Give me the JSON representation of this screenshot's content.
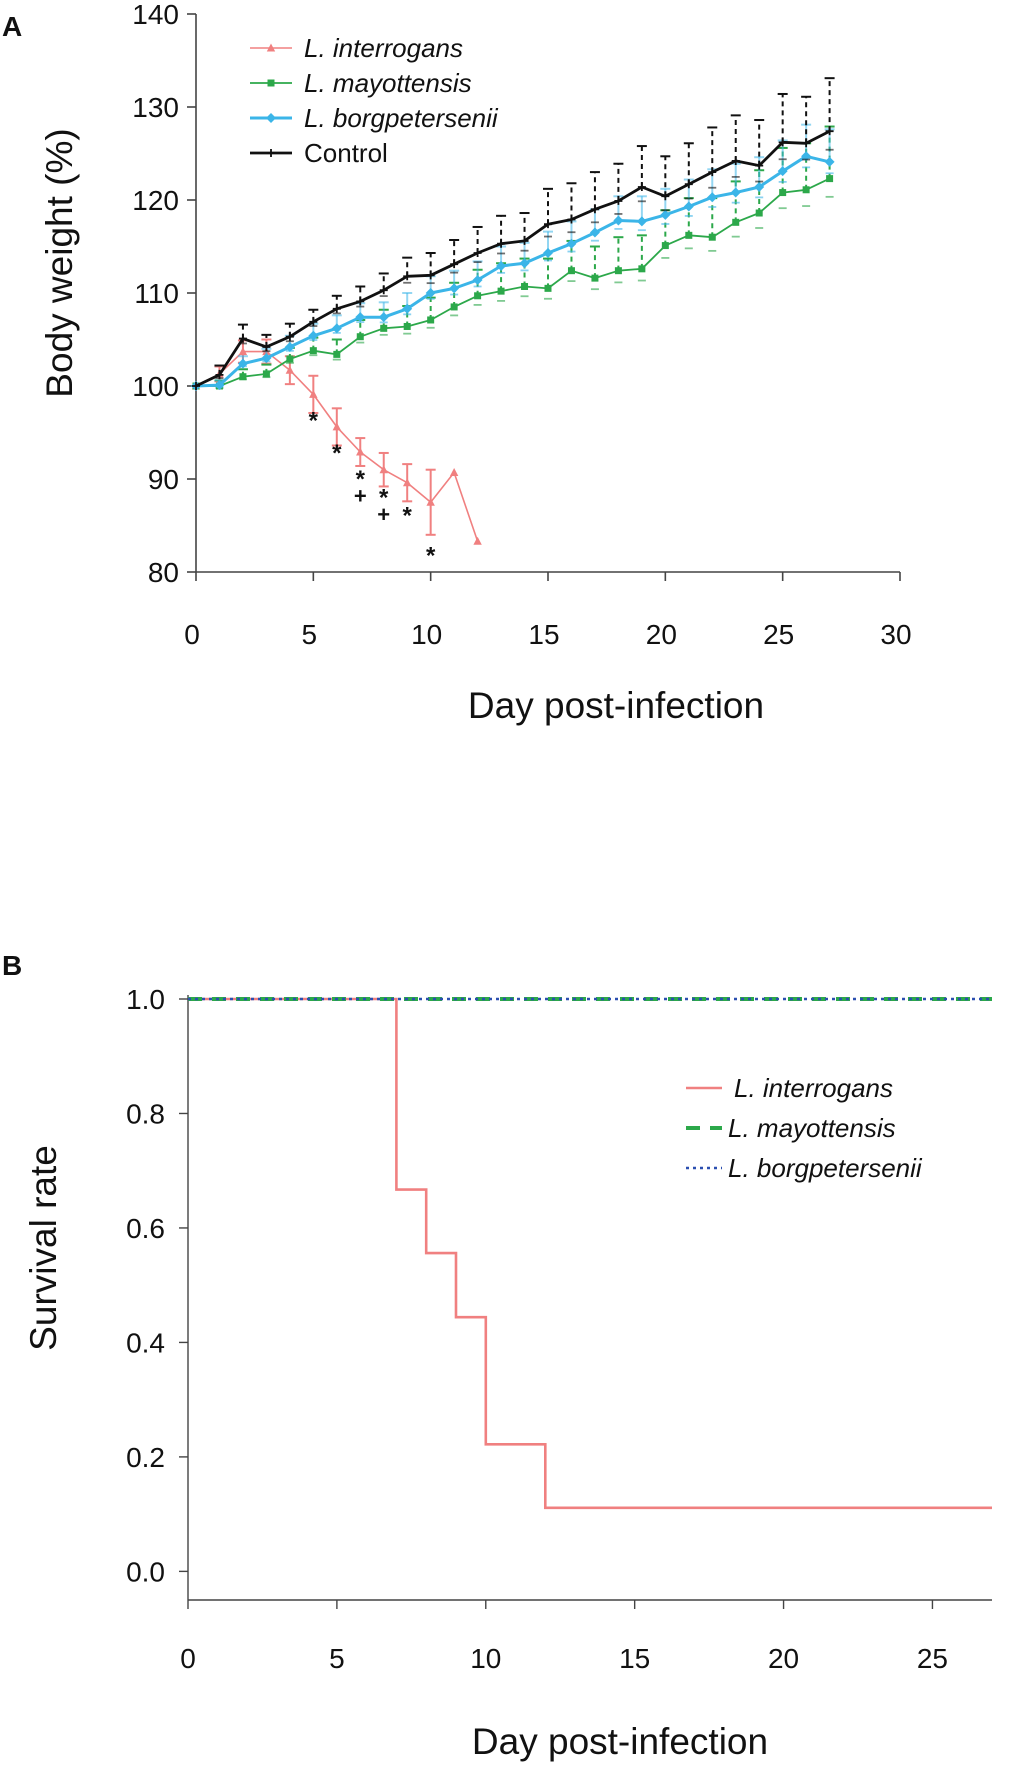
{
  "chart_data": [
    {
      "panel": "A",
      "type": "line",
      "xlabel": "Day post-infection",
      "ylabel": "Body weight (%)",
      "xlim": [
        0,
        30
      ],
      "ylim": [
        80,
        140
      ],
      "xticks": [
        "0",
        "5",
        "10",
        "15",
        "20",
        "25",
        "30"
      ],
      "yticks": [
        "80",
        "90",
        "100",
        "110",
        "120",
        "130",
        "140"
      ],
      "legend_position": "top-left",
      "series": [
        {
          "name": "L. interrogans",
          "color": "#f08080",
          "marker": "triangle",
          "x": [
            0,
            1,
            2,
            3,
            4,
            5,
            6,
            7,
            8,
            9,
            10,
            11,
            12
          ],
          "y": [
            100,
            101.3,
            103.7,
            103.7,
            101.7,
            99.1,
            95.6,
            92.9,
            91.0,
            89.6,
            87.5,
            90.7,
            83.3
          ],
          "err": [
            0,
            0.8,
            1.2,
            1.3,
            1.5,
            2.0,
            2.0,
            1.5,
            1.8,
            2.0,
            3.5,
            0,
            0
          ]
        },
        {
          "name": "L. mayottensis",
          "color": "#2ca84a",
          "marker": "square",
          "x": [
            0,
            1,
            2,
            3,
            4,
            5,
            6,
            7,
            8,
            9,
            10,
            11,
            12,
            13,
            14,
            15,
            16,
            17,
            18,
            19,
            20,
            21,
            22,
            23,
            24,
            25,
            26,
            27
          ],
          "y": [
            100,
            100.0,
            101.0,
            101.3,
            102.9,
            103.8,
            103.4,
            105.3,
            106.2,
            106.4,
            107.1,
            108.5,
            109.7,
            110.2,
            110.7,
            110.5,
            112.4,
            111.6,
            112.4,
            112.6,
            115.1,
            116.2,
            116.0,
            117.6,
            118.6,
            120.8,
            121.1,
            122.3
          ],
          "err": [
            0,
            0.6,
            0.8,
            1.0,
            1.2,
            1.4,
            1.6,
            1.8,
            2.0,
            2.2,
            2.4,
            2.6,
            2.8,
            3.0,
            3.0,
            3.2,
            3.2,
            3.4,
            3.6,
            3.6,
            3.8,
            4.0,
            4.2,
            4.4,
            4.6,
            4.8,
            5.0,
            5.6
          ]
        },
        {
          "name": "L. borgpetersenii",
          "color": "#3bb5e8",
          "marker": "diamond",
          "x": [
            0,
            1,
            2,
            3,
            4,
            5,
            6,
            7,
            8,
            9,
            10,
            11,
            12,
            13,
            14,
            15,
            16,
            17,
            18,
            19,
            20,
            21,
            22,
            23,
            24,
            25,
            26,
            27
          ],
          "y": [
            100,
            100.1,
            102.4,
            103.0,
            104.2,
            105.4,
            106.2,
            107.4,
            107.4,
            108.3,
            110.0,
            110.5,
            111.4,
            112.9,
            113.2,
            114.3,
            115.3,
            116.5,
            117.8,
            117.7,
            118.4,
            119.3,
            120.3,
            120.8,
            121.4,
            123.1,
            124.7,
            124.1
          ],
          "err": [
            0,
            0.5,
            0.8,
            1.0,
            1.2,
            1.3,
            1.4,
            1.5,
            1.6,
            1.7,
            1.8,
            1.9,
            2.0,
            2.1,
            2.2,
            2.3,
            2.4,
            2.5,
            2.6,
            2.7,
            2.8,
            2.9,
            3.0,
            3.1,
            3.2,
            3.3,
            3.4,
            3.5
          ]
        },
        {
          "name": "Control",
          "color": "#111111",
          "marker": "plus",
          "x": [
            0,
            1,
            2,
            3,
            4,
            5,
            6,
            7,
            8,
            9,
            10,
            11,
            12,
            13,
            14,
            15,
            16,
            17,
            18,
            19,
            20,
            21,
            22,
            23,
            24,
            25,
            26,
            27
          ],
          "y": [
            100,
            101.2,
            105.1,
            104.2,
            105.3,
            106.9,
            108.3,
            109.1,
            110.3,
            111.8,
            111.9,
            113.1,
            114.3,
            115.3,
            115.6,
            117.4,
            117.9,
            119.0,
            119.9,
            121.4,
            120.4,
            121.7,
            123.0,
            124.2,
            123.7,
            126.2,
            126.1,
            127.4
          ],
          "err": [
            0,
            1.0,
            1.5,
            1.3,
            1.4,
            1.3,
            1.4,
            1.6,
            1.8,
            2.0,
            2.4,
            2.6,
            2.8,
            3.0,
            3.0,
            3.8,
            3.9,
            4.0,
            4.0,
            4.4,
            4.3,
            4.4,
            4.8,
            4.9,
            4.9,
            5.2,
            5.0,
            5.7
          ]
        }
      ],
      "annotations": [
        {
          "x": 5,
          "y": 96.5,
          "text": "*"
        },
        {
          "x": 6,
          "y": 93.0,
          "text": "*"
        },
        {
          "x": 7,
          "y": 90.2,
          "text": "*"
        },
        {
          "x": 7,
          "y": 88.0,
          "text": "+"
        },
        {
          "x": 8,
          "y": 88.2,
          "text": "*"
        },
        {
          "x": 8,
          "y": 86.0,
          "text": "+"
        },
        {
          "x": 9,
          "y": 86.3,
          "text": "*"
        },
        {
          "x": 10,
          "y": 82.0,
          "text": "*"
        }
      ]
    },
    {
      "panel": "B",
      "type": "line",
      "xlabel": "Day post-infection",
      "ylabel": "Survival rate",
      "xlim": [
        0,
        27
      ],
      "ylim": [
        -0.05,
        1.0
      ],
      "xticks": [
        "0",
        "5",
        "10",
        "15",
        "20",
        "25"
      ],
      "yticks": [
        "0.0",
        "0.2",
        "0.4",
        "0.6",
        "0.8",
        "1.0"
      ],
      "legend_position": "right",
      "series": [
        {
          "name": "L. interrogans",
          "color": "#f08080",
          "style": "solid",
          "step": true,
          "x": [
            0,
            7,
            8,
            9,
            10,
            12,
            27
          ],
          "y": [
            1.0,
            0.667,
            0.556,
            0.444,
            0.222,
            0.111,
            0.111
          ]
        },
        {
          "name": "L. mayottensis",
          "color": "#2ca84a",
          "style": "dashed",
          "step": true,
          "x": [
            0,
            27
          ],
          "y": [
            1.0,
            1.0
          ]
        },
        {
          "name": "L. borgpetersenii",
          "color": "#2b4fb0",
          "style": "dotted",
          "step": true,
          "x": [
            0,
            27
          ],
          "y": [
            1.0,
            1.0
          ]
        }
      ]
    }
  ],
  "panel_labels": [
    "A",
    "B"
  ]
}
